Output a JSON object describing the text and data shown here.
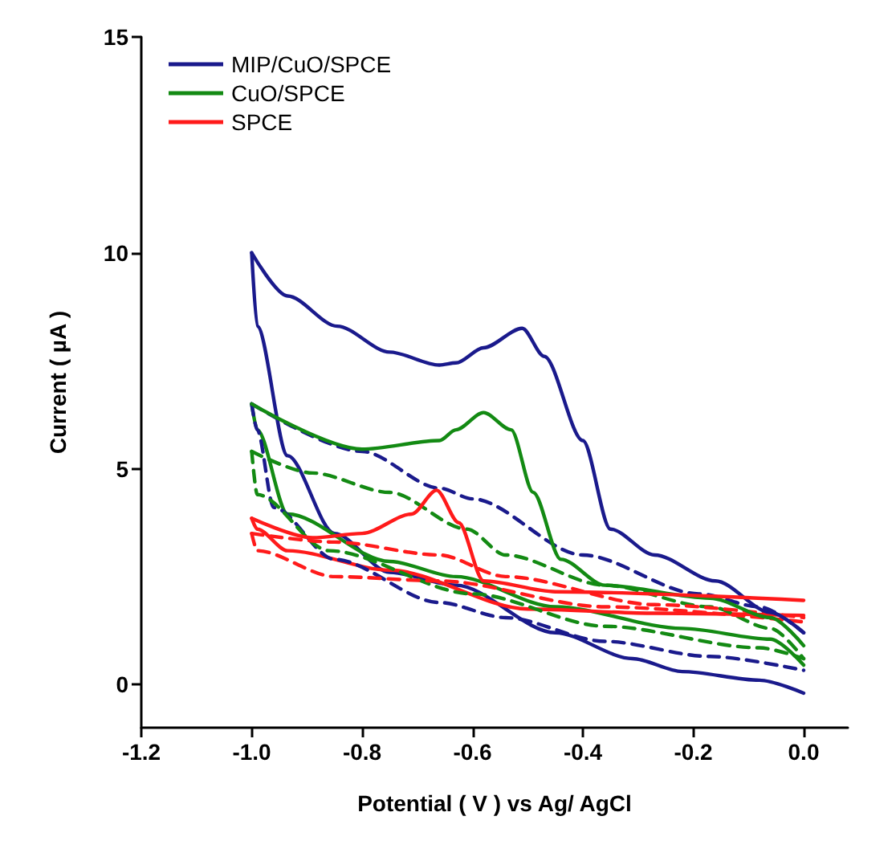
{
  "chart_data": {
    "type": "line",
    "xlabel": "Potential ( V ) vs Ag/ AgCl",
    "ylabel": "Current ( µA )",
    "xlim": [
      -1.2,
      0.08
    ],
    "ylim": [
      -1,
      15
    ],
    "xticks": [
      -1.2,
      {
        "value": -1.0,
        "label": "-1.0"
      },
      -0.8,
      -0.6,
      -0.4,
      -0.2,
      {
        "value": 0,
        "label": "0.0"
      }
    ],
    "yticks": [
      0,
      5,
      10,
      15
    ],
    "legend": "top left",
    "marker": "none",
    "series": [
      {
        "name": "MIP/CuO/SPCE",
        "color": "#1a1a8c",
        "line_style": "solid",
        "x": [
          -1.0,
          -0.935,
          -0.845,
          -0.75,
          -0.66,
          -0.63,
          -0.58,
          -0.51,
          -0.47,
          -0.4,
          -0.35,
          -0.27,
          -0.16,
          -0.06,
          0
        ],
        "values": [
          10.0,
          9.0,
          8.3,
          7.7,
          7.4,
          7.45,
          7.8,
          8.25,
          7.6,
          5.65,
          3.6,
          3.0,
          2.4,
          1.67,
          1.2
        ]
      },
      {
        "color": "#1a1a8c",
        "line_style": "solid",
        "x": [
          -1.0,
          -0.99,
          -0.935,
          -0.85,
          -0.75,
          -0.63,
          -0.45,
          -0.31,
          -0.22,
          -0.08,
          0
        ],
        "values": [
          10.0,
          8.3,
          5.3,
          3.5,
          2.6,
          2.3,
          1.2,
          0.6,
          0.3,
          0.1,
          -0.2
        ]
      },
      {
        "name": "CuO/SPCE",
        "color": "#138a13",
        "line_style": "solid",
        "x": [
          -1.0,
          -0.8,
          -0.66,
          -0.63,
          -0.58,
          -0.53,
          -0.49,
          -0.44,
          -0.36,
          -0.17,
          -0.06,
          0
        ],
        "values": [
          6.5,
          5.45,
          5.65,
          5.9,
          6.3,
          5.9,
          4.45,
          2.9,
          2.3,
          2.0,
          1.55,
          0.9
        ]
      },
      {
        "color": "#138a13",
        "line_style": "solid",
        "x": [
          -1.0,
          -0.99,
          -0.935,
          -0.75,
          -0.63,
          -0.45,
          -0.22,
          -0.06,
          0
        ],
        "values": [
          6.5,
          5.9,
          3.95,
          2.85,
          2.5,
          1.8,
          1.3,
          1.05,
          0.45
        ]
      },
      {
        "name": "SPCE",
        "color": "#ff1a1a",
        "line_style": "solid",
        "x": [
          -1.0,
          -0.89,
          -0.8,
          -0.71,
          -0.665,
          -0.625,
          -0.58,
          -0.45,
          0
        ],
        "values": [
          3.85,
          3.4,
          3.5,
          3.95,
          4.5,
          3.75,
          2.4,
          2.15,
          1.95
        ]
      },
      {
        "color": "#ff1a1a",
        "line_style": "solid",
        "x": [
          -1.0,
          -0.99,
          -0.935,
          -0.75,
          -0.5,
          -0.27,
          0
        ],
        "values": [
          3.85,
          3.6,
          3.1,
          2.65,
          1.75,
          1.65,
          1.6
        ]
      },
      {
        "color": "#1a1a8c",
        "line_style": "dashed",
        "x": [
          -1.0,
          -0.8,
          -0.66,
          -0.6,
          -0.4,
          -0.19,
          -0.08,
          0
        ],
        "values": [
          6.5,
          5.4,
          4.55,
          4.3,
          3.0,
          2.1,
          1.8,
          1.2
        ]
      },
      {
        "color": "#1a1a8c",
        "line_style": "dashed",
        "x": [
          -1.0,
          -0.99,
          -0.96,
          -0.85,
          -0.66,
          -0.54,
          -0.36,
          -0.17,
          0
        ],
        "values": [
          6.5,
          5.9,
          4.1,
          2.9,
          1.9,
          1.55,
          1.0,
          0.65,
          0.33
        ]
      },
      {
        "color": "#138a13",
        "line_style": "dashed",
        "x": [
          -1.0,
          -0.89,
          -0.75,
          -0.61,
          -0.54,
          -0.36,
          -0.17,
          -0.06,
          0
        ],
        "values": [
          5.4,
          4.9,
          4.45,
          3.6,
          3.0,
          2.3,
          1.8,
          1.3,
          0.6
        ]
      },
      {
        "color": "#138a13",
        "line_style": "dashed",
        "x": [
          -1.0,
          -0.99,
          -0.86,
          -0.6,
          -0.36,
          -0.08,
          0
        ],
        "values": [
          5.4,
          4.4,
          3.1,
          2.1,
          1.35,
          0.85,
          0.6
        ]
      },
      {
        "color": "#ff1a1a",
        "line_style": "dashed",
        "x": [
          -1.0,
          -0.85,
          -0.66,
          -0.54,
          -0.27,
          0
        ],
        "values": [
          3.5,
          3.3,
          3.0,
          2.5,
          1.85,
          1.55
        ]
      },
      {
        "color": "#ff1a1a",
        "line_style": "dashed",
        "x": [
          -1.0,
          -0.99,
          -0.85,
          -0.66,
          -0.36,
          0
        ],
        "values": [
          3.5,
          3.1,
          2.5,
          2.4,
          1.8,
          1.45
        ]
      }
    ]
  }
}
